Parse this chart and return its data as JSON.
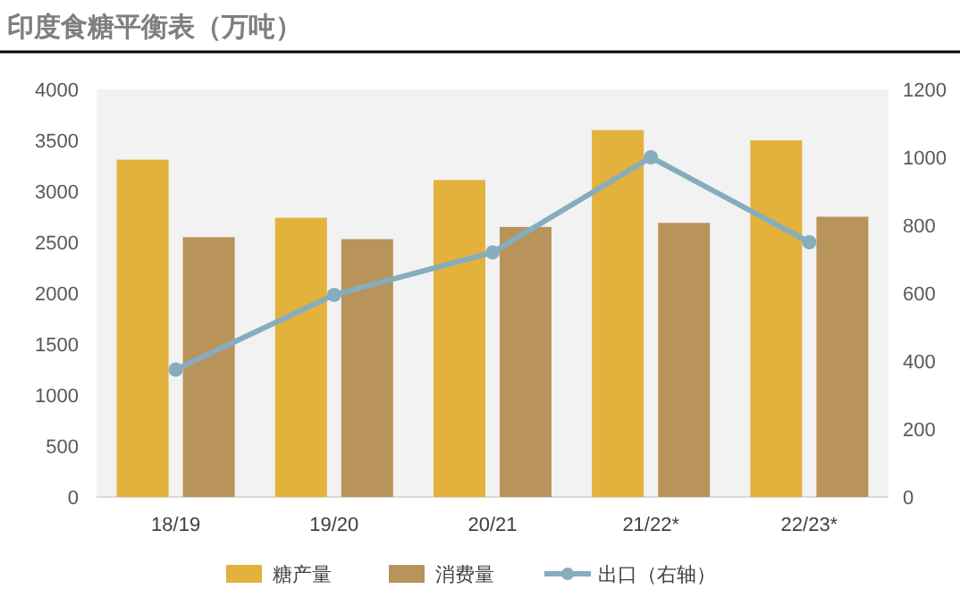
{
  "chart_data": {
    "type": "bar",
    "title": "印度食糖平衡表（万吨）",
    "categories": [
      "18/19",
      "19/20",
      "20/21",
      "21/22*",
      "22/23*"
    ],
    "series": [
      {
        "name": "糖产量",
        "color": "#e3b23c",
        "values": [
          3310,
          2740,
          3110,
          3600,
          3500
        ]
      },
      {
        "name": "消费量",
        "color": "#b8935a",
        "values": [
          2550,
          2530,
          2650,
          2690,
          2750
        ]
      },
      {
        "name": "出口（右轴）",
        "color": "#85adbd",
        "type": "line",
        "axis": "y2",
        "marker": "circle",
        "values": [
          375,
          595,
          720,
          1000,
          750
        ]
      }
    ],
    "ylim": [
      0,
      4000
    ],
    "yticks": [
      0,
      500,
      1000,
      1500,
      2000,
      2500,
      3000,
      3500,
      4000
    ],
    "y2lim": [
      0,
      1200
    ],
    "y2ticks": [
      0,
      200,
      400,
      600,
      800,
      1000,
      1200
    ],
    "legend": "bottom",
    "grid": false
  }
}
